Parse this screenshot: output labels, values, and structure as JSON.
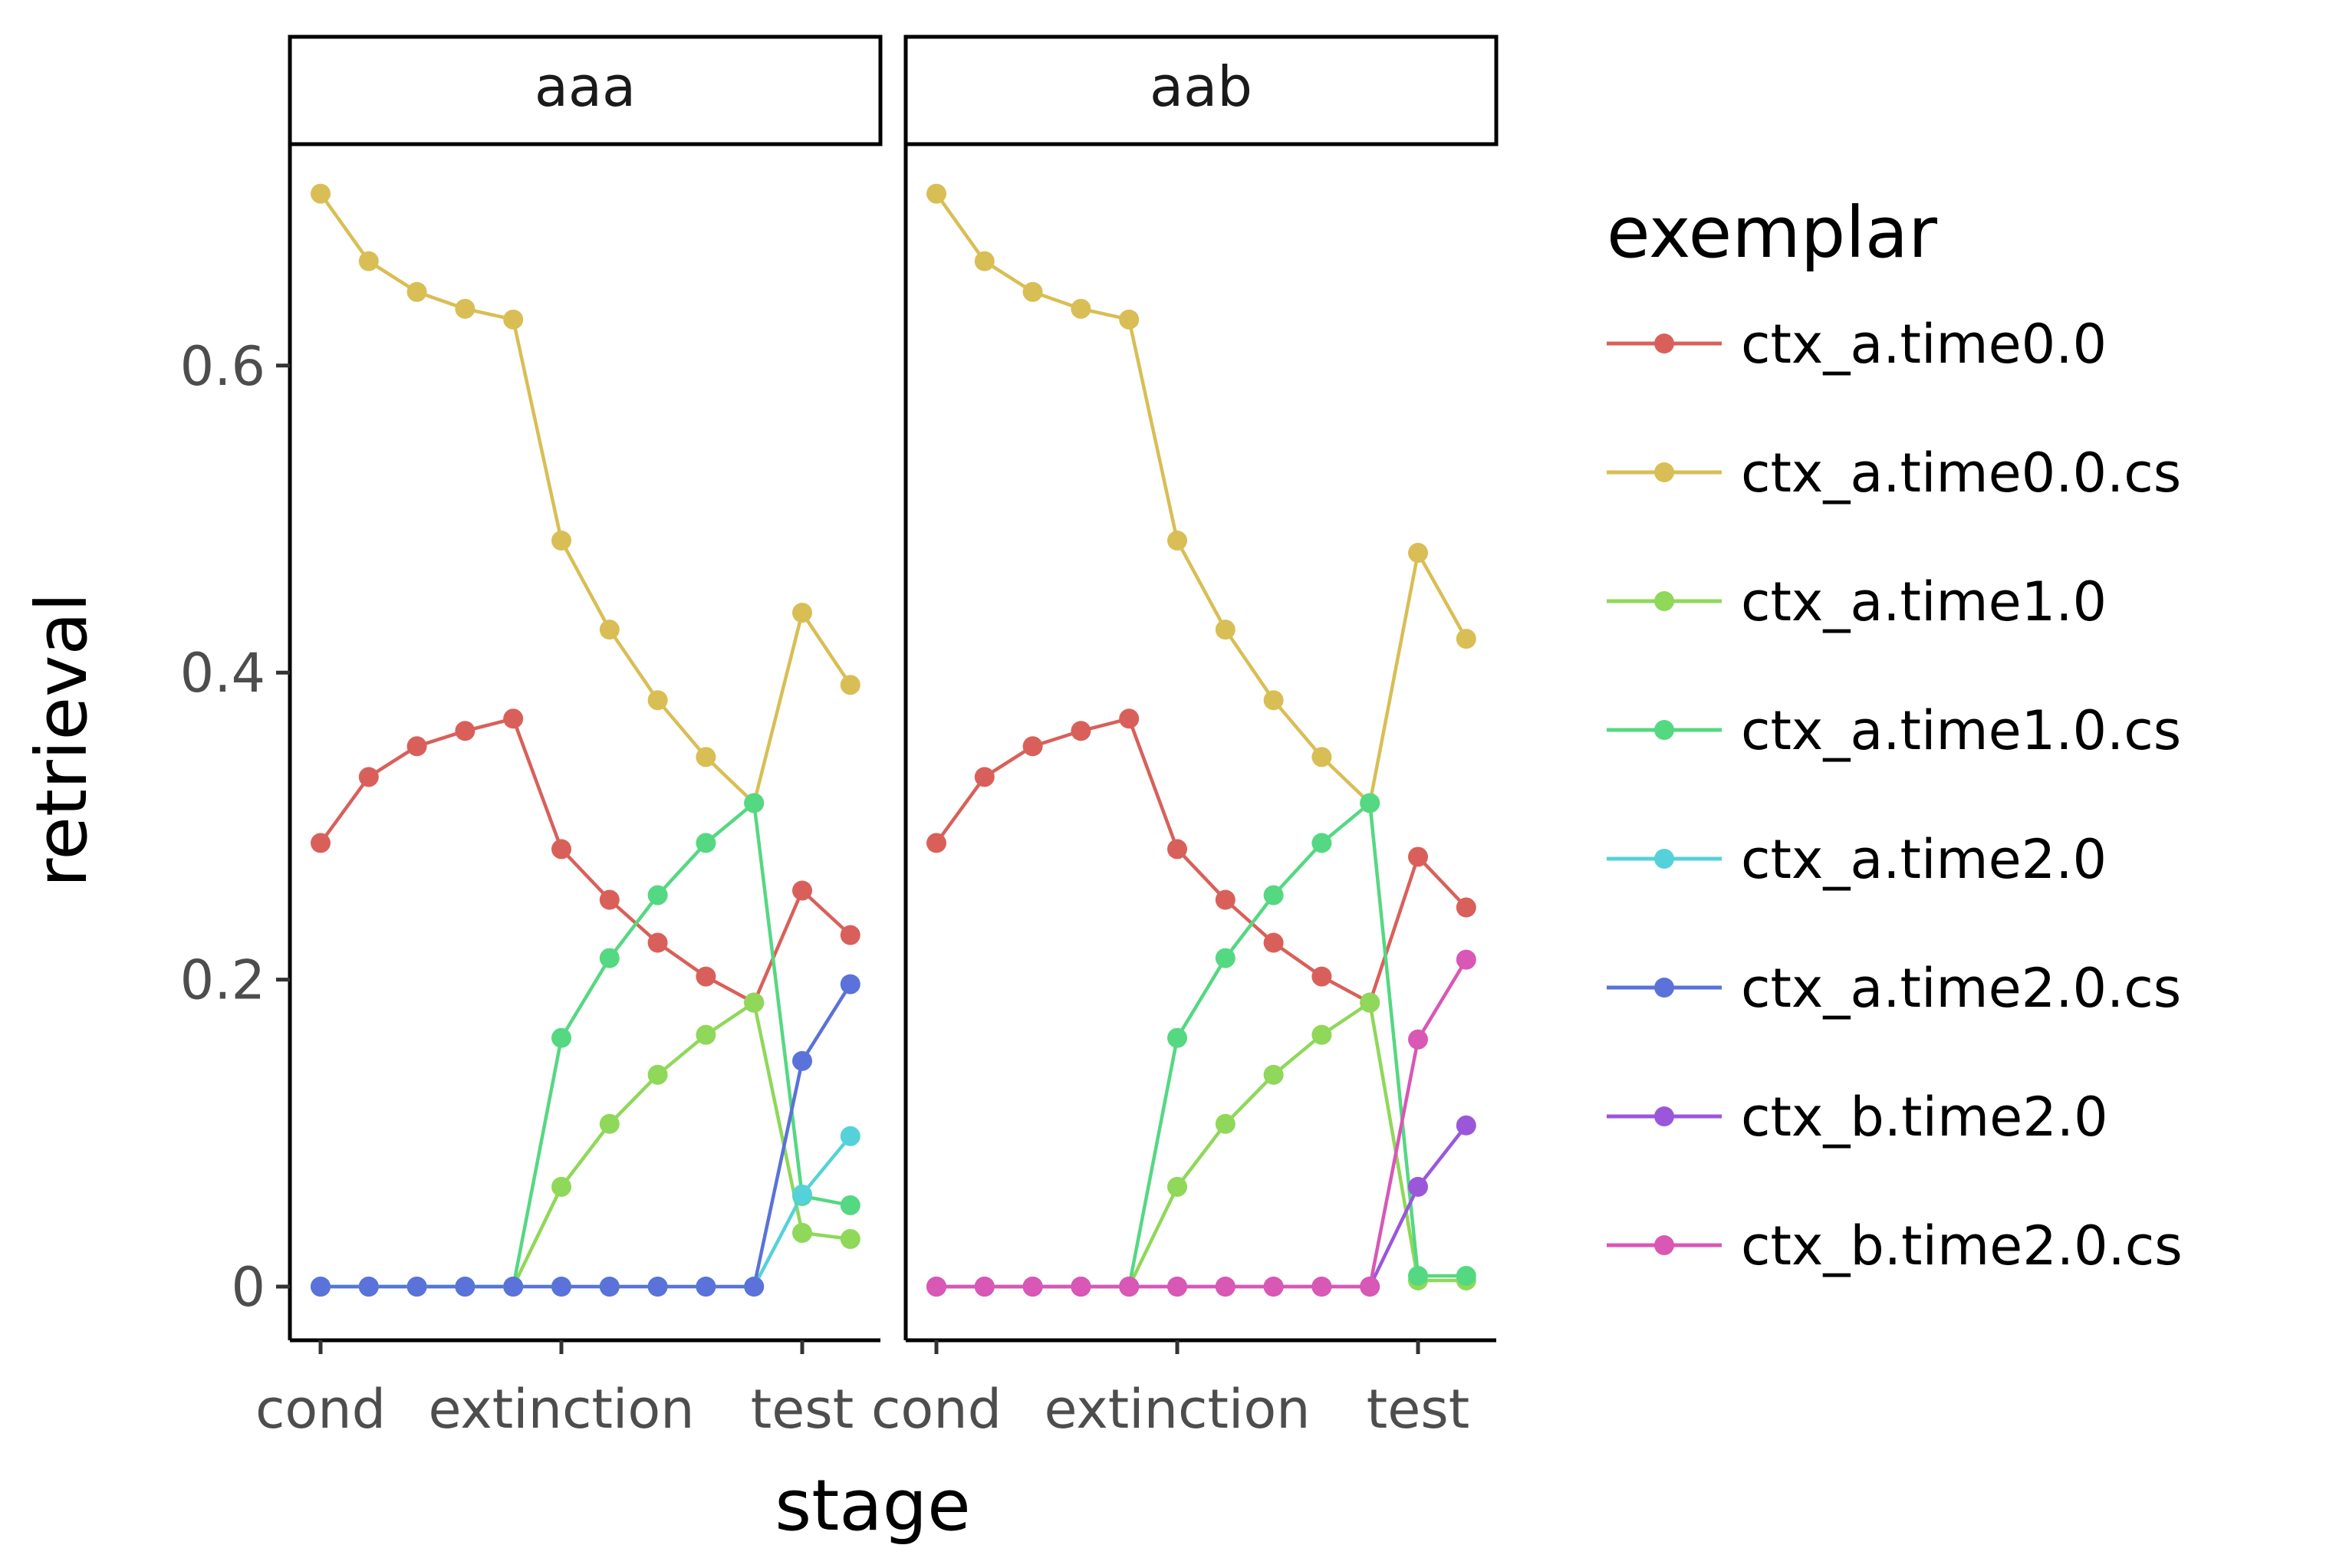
{
  "chart_data": {
    "type": "line",
    "xlabel": "stage",
    "ylabel": "retrieval",
    "ylim": [
      -0.07,
      0.79
    ],
    "yticks": [
      0,
      0.2,
      0.4,
      0.6
    ],
    "ytick_labels": [
      "0",
      "0.2",
      "0.4",
      "0.6"
    ],
    "stage_labels": [
      "cond",
      "extinction",
      "test"
    ],
    "legend": {
      "title": "exemplar",
      "position": "right"
    },
    "grid": false,
    "series_styles": [
      {
        "name": "ctx_a.time0.0",
        "color": "#D9605A"
      },
      {
        "name": "ctx_a.time0.0.cs",
        "color": "#D8BE55"
      },
      {
        "name": "ctx_a.time1.0",
        "color": "#8FD85A"
      },
      {
        "name": "ctx_a.time1.0.cs",
        "color": "#55D882"
      },
      {
        "name": "ctx_a.time2.0",
        "color": "#55D2D9"
      },
      {
        "name": "ctx_a.time2.0.cs",
        "color": "#5A72D9"
      },
      {
        "name": "ctx_b.time2.0",
        "color": "#9B57DA"
      },
      {
        "name": "ctx_b.time2.0.cs",
        "color": "#D957B5"
      }
    ],
    "panels": [
      {
        "label": "aaa",
        "series": [
          {
            "name": "ctx_a.time0.0",
            "x": [
              0,
              1,
              2,
              3,
              4,
              5,
              6,
              7,
              8,
              9,
              10,
              11
            ],
            "y": [
              0.289,
              0.332,
              0.352,
              0.362,
              0.37,
              0.285,
              0.252,
              0.224,
              0.202,
              0.185,
              0.258,
              0.229
            ]
          },
          {
            "name": "ctx_a.time0.0.cs",
            "x": [
              0,
              1,
              2,
              3,
              4,
              5,
              6,
              7,
              8,
              9,
              10,
              11
            ],
            "y": [
              0.712,
              0.668,
              0.648,
              0.637,
              0.63,
              0.486,
              0.428,
              0.382,
              0.345,
              0.315,
              0.439,
              0.392
            ]
          },
          {
            "name": "ctx_a.time1.0",
            "x": [
              0,
              1,
              2,
              3,
              4,
              5,
              6,
              7,
              8,
              9,
              10,
              11
            ],
            "y": [
              0,
              0,
              0,
              0,
              0,
              0.065,
              0.106,
              0.138,
              0.164,
              0.185,
              0.035,
              0.031
            ]
          },
          {
            "name": "ctx_a.time1.0.cs",
            "x": [
              0,
              1,
              2,
              3,
              4,
              5,
              6,
              7,
              8,
              9,
              10,
              11
            ],
            "y": [
              0,
              0,
              0,
              0,
              0,
              0.162,
              0.214,
              0.255,
              0.289,
              0.315,
              0.059,
              0.053
            ]
          },
          {
            "name": "ctx_a.time2.0",
            "x": [
              0,
              1,
              2,
              3,
              4,
              5,
              6,
              7,
              8,
              9,
              10,
              11
            ],
            "y": [
              0,
              0,
              0,
              0,
              0,
              0,
              0,
              0,
              0,
              0,
              0.06,
              0.098
            ]
          },
          {
            "name": "ctx_a.time2.0.cs",
            "x": [
              0,
              1,
              2,
              3,
              4,
              5,
              6,
              7,
              8,
              9,
              10,
              11
            ],
            "y": [
              0,
              0,
              0,
              0,
              0,
              0,
              0,
              0,
              0,
              0,
              0.147,
              0.197
            ]
          }
        ]
      },
      {
        "label": "aab",
        "series": [
          {
            "name": "ctx_a.time0.0",
            "x": [
              0,
              1,
              2,
              3,
              4,
              5,
              6,
              7,
              8,
              9,
              10,
              11
            ],
            "y": [
              0.289,
              0.332,
              0.352,
              0.362,
              0.37,
              0.285,
              0.252,
              0.224,
              0.202,
              0.185,
              0.28,
              0.247
            ]
          },
          {
            "name": "ctx_a.time0.0.cs",
            "x": [
              0,
              1,
              2,
              3,
              4,
              5,
              6,
              7,
              8,
              9,
              10,
              11
            ],
            "y": [
              0.712,
              0.668,
              0.648,
              0.637,
              0.63,
              0.486,
              0.428,
              0.382,
              0.345,
              0.315,
              0.478,
              0.422
            ]
          },
          {
            "name": "ctx_a.time1.0",
            "x": [
              0,
              1,
              2,
              3,
              4,
              5,
              6,
              7,
              8,
              9,
              10,
              11
            ],
            "y": [
              0,
              0,
              0,
              0,
              0,
              0.065,
              0.106,
              0.138,
              0.164,
              0.185,
              0.004,
              0.004
            ]
          },
          {
            "name": "ctx_a.time1.0.cs",
            "x": [
              0,
              1,
              2,
              3,
              4,
              5,
              6,
              7,
              8,
              9,
              10,
              11
            ],
            "y": [
              0,
              0,
              0,
              0,
              0,
              0.162,
              0.214,
              0.255,
              0.289,
              0.315,
              0.007,
              0.007
            ]
          },
          {
            "name": "ctx_b.time2.0",
            "x": [
              0,
              1,
              2,
              3,
              4,
              5,
              6,
              7,
              8,
              9,
              10,
              11
            ],
            "y": [
              0,
              0,
              0,
              0,
              0,
              0,
              0,
              0,
              0,
              0,
              0.065,
              0.105
            ]
          },
          {
            "name": "ctx_b.time2.0.cs",
            "x": [
              0,
              1,
              2,
              3,
              4,
              5,
              6,
              7,
              8,
              9,
              10,
              11
            ],
            "y": [
              0,
              0,
              0,
              0,
              0,
              0,
              0,
              0,
              0,
              0,
              0.161,
              0.213
            ]
          }
        ]
      }
    ]
  }
}
